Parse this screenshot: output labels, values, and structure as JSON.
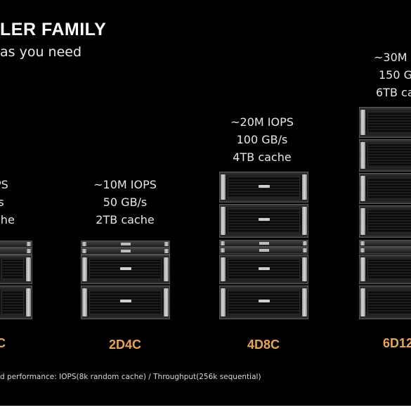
{
  "header": {
    "title": "LER FAMILY",
    "subtitle": "as you need"
  },
  "models": [
    {
      "name": "C",
      "specs": [
        "PS",
        "/s",
        "che"
      ]
    },
    {
      "name": "2D4C",
      "specs": [
        "~10M IOPS",
        "50 GB/s",
        "2TB cache"
      ]
    },
    {
      "name": "4D8C",
      "specs": [
        "~20M IOPS",
        "100 GB/s",
        "4TB cache"
      ]
    },
    {
      "name": "6D12",
      "specs": [
        "~30M IO",
        "150 G",
        "6TB ca"
      ]
    }
  ],
  "footnote": "d performance: IOPS(8k random cache) / Throughput(256k sequential)"
}
